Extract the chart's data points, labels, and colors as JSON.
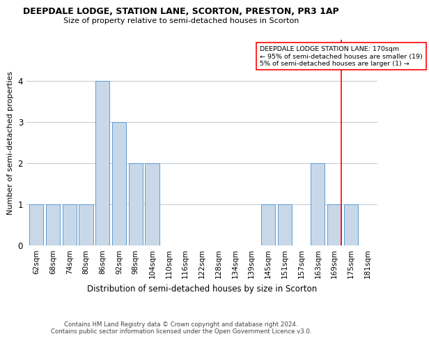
{
  "title1": "DEEPDALE LODGE, STATION LANE, SCORTON, PRESTON, PR3 1AP",
  "title2": "Size of property relative to semi-detached houses in Scorton",
  "xlabel": "Distribution of semi-detached houses by size in Scorton",
  "ylabel": "Number of semi-detached properties",
  "categories": [
    "62sqm",
    "68sqm",
    "74sqm",
    "80sqm",
    "86sqm",
    "92sqm",
    "98sqm",
    "104sqm",
    "110sqm",
    "116sqm",
    "122sqm",
    "128sqm",
    "134sqm",
    "139sqm",
    "145sqm",
    "151sqm",
    "157sqm",
    "163sqm",
    "169sqm",
    "175sqm",
    "181sqm"
  ],
  "values": [
    1,
    1,
    1,
    1,
    4,
    3,
    2,
    2,
    0,
    0,
    0,
    0,
    0,
    0,
    1,
    1,
    0,
    2,
    1,
    1,
    0
  ],
  "bar_color": "#c8d8e8",
  "bar_edge_color": "#5b9bd5",
  "highlight_index": 18,
  "annotation_line1": "DEEPDALE LODGE STATION LANE: 170sqm",
  "annotation_line2": "← 95% of semi-detached houses are smaller (19)",
  "annotation_line3": "5% of semi-detached houses are larger (1) →",
  "ylim": [
    0,
    5
  ],
  "yticks": [
    0,
    1,
    2,
    3,
    4,
    5
  ],
  "footer1": "Contains HM Land Registry data © Crown copyright and database right 2024.",
  "footer2": "Contains public sector information licensed under the Open Government Licence v3.0.",
  "background_color": "#ffffff",
  "grid_color": "#c0c8d0"
}
